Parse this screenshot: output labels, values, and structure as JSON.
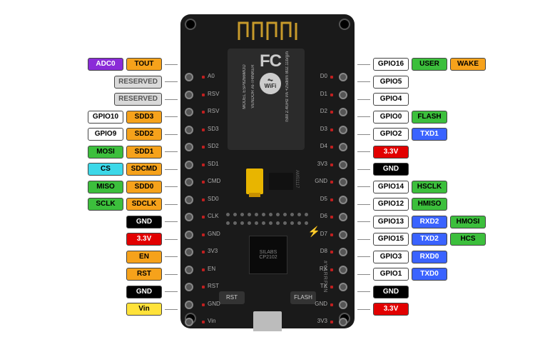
{
  "colors": {
    "orange": {
      "bg": "#f6a21b",
      "fg": "#000000"
    },
    "purple": {
      "bg": "#8a2bd8",
      "fg": "#ffffff"
    },
    "grey": {
      "bg": "#d9d9d9",
      "fg": "#555555"
    },
    "white": {
      "bg": "#ffffff",
      "fg": "#000000"
    },
    "green": {
      "bg": "#3cbf3c",
      "fg": "#000000"
    },
    "cyan": {
      "bg": "#3cd8e8",
      "fg": "#000000"
    },
    "black": {
      "bg": "#000000",
      "fg": "#ffffff"
    },
    "red": {
      "bg": "#e20000",
      "fg": "#ffffff"
    },
    "yellow": {
      "bg": "#ffe23a",
      "fg": "#000000"
    },
    "blue": {
      "bg": "#3a63ff",
      "fg": "#ffffff"
    }
  },
  "silkscreen_left": [
    "A0",
    "RSV",
    "RSV",
    "SD3",
    "SD2",
    "SD1",
    "CMD",
    "SD0",
    "CLK",
    "GND",
    "3V3",
    "EN",
    "RST",
    "GND",
    "Vin"
  ],
  "silkscreen_right": [
    "D0",
    "D1",
    "D2",
    "D3",
    "D4",
    "3V3",
    "GND",
    "D5",
    "D6",
    "D7",
    "D8",
    "RX",
    "TX",
    "GND",
    "3V3"
  ],
  "left_pins": [
    [
      {
        "t": "TOUT",
        "c": "orange"
      },
      {
        "t": "ADC0",
        "c": "purple"
      }
    ],
    [
      {
        "t": "RESERVED",
        "c": "grey"
      }
    ],
    [
      {
        "t": "RESERVED",
        "c": "grey"
      }
    ],
    [
      {
        "t": "SDD3",
        "c": "orange"
      },
      {
        "t": "GPIO10",
        "c": "white"
      }
    ],
    [
      {
        "t": "SDD2",
        "c": "orange"
      },
      {
        "t": "GPIO9",
        "c": "white"
      }
    ],
    [
      {
        "t": "SDD1",
        "c": "orange"
      },
      {
        "t": "MOSI",
        "c": "green"
      }
    ],
    [
      {
        "t": "SDCMD",
        "c": "orange"
      },
      {
        "t": "CS",
        "c": "cyan"
      }
    ],
    [
      {
        "t": "SDD0",
        "c": "orange"
      },
      {
        "t": "MISO",
        "c": "green"
      }
    ],
    [
      {
        "t": "SDCLK",
        "c": "orange"
      },
      {
        "t": "SCLK",
        "c": "green"
      }
    ],
    [
      {
        "t": "GND",
        "c": "black"
      }
    ],
    [
      {
        "t": "3.3V",
        "c": "red"
      }
    ],
    [
      {
        "t": "EN",
        "c": "orange"
      }
    ],
    [
      {
        "t": "RST",
        "c": "orange"
      }
    ],
    [
      {
        "t": "GND",
        "c": "black"
      }
    ],
    [
      {
        "t": "Vin",
        "c": "yellow"
      }
    ]
  ],
  "right_pins": [
    [
      {
        "t": "GPIO16",
        "c": "white"
      },
      {
        "t": "USER",
        "c": "green"
      },
      {
        "t": "WAKE",
        "c": "orange"
      }
    ],
    [
      {
        "t": "GPIO5",
        "c": "white"
      }
    ],
    [
      {
        "t": "GPIO4",
        "c": "white"
      }
    ],
    [
      {
        "t": "GPIO0",
        "c": "white"
      },
      {
        "t": "FLASH",
        "c": "green"
      }
    ],
    [
      {
        "t": "GPIO2",
        "c": "white"
      },
      {
        "t": "TXD1",
        "c": "blue"
      }
    ],
    [
      {
        "t": "3.3V",
        "c": "red"
      }
    ],
    [
      {
        "t": "GND",
        "c": "black"
      }
    ],
    [
      {
        "t": "GPIO14",
        "c": "white"
      },
      {
        "t": "HSCLK",
        "c": "green"
      }
    ],
    [
      {
        "t": "GPIO12",
        "c": "white"
      },
      {
        "t": "HMISO",
        "c": "green"
      }
    ],
    [
      {
        "t": "GPIO13",
        "c": "white"
      },
      {
        "t": "RXD2",
        "c": "blue"
      },
      {
        "t": "HMOSI",
        "c": "green"
      }
    ],
    [
      {
        "t": "GPIO15",
        "c": "white"
      },
      {
        "t": "TXD2",
        "c": "blue"
      },
      {
        "t": "HCS",
        "c": "green"
      }
    ],
    [
      {
        "t": "GPIO3",
        "c": "white"
      },
      {
        "t": "RXD0",
        "c": "blue"
      }
    ],
    [
      {
        "t": "GPIO1",
        "c": "white"
      },
      {
        "t": "TXD0",
        "c": "blue"
      }
    ],
    [
      {
        "t": "GND",
        "c": "black"
      }
    ],
    [
      {
        "t": "3.3V",
        "c": "red"
      }
    ]
  ],
  "shield": {
    "model_label": "MODEL",
    "model": "ESP8266MOD",
    "vendor_label": "VENDOR",
    "vendor": "AI-THINKER",
    "ism": "ISM 2.4GHz",
    "pa": "PA +25dBm",
    "std": "802.11b/g/n",
    "fcc": "FC",
    "wifi": "WiFi"
  },
  "buttons": {
    "rst": "RST",
    "flash": "FLASH"
  },
  "chip": {
    "l1": "SILABS",
    "l2": "CP2102"
  },
  "reg_label": "AMS1117",
  "fun_text": "#YARRFUN"
}
